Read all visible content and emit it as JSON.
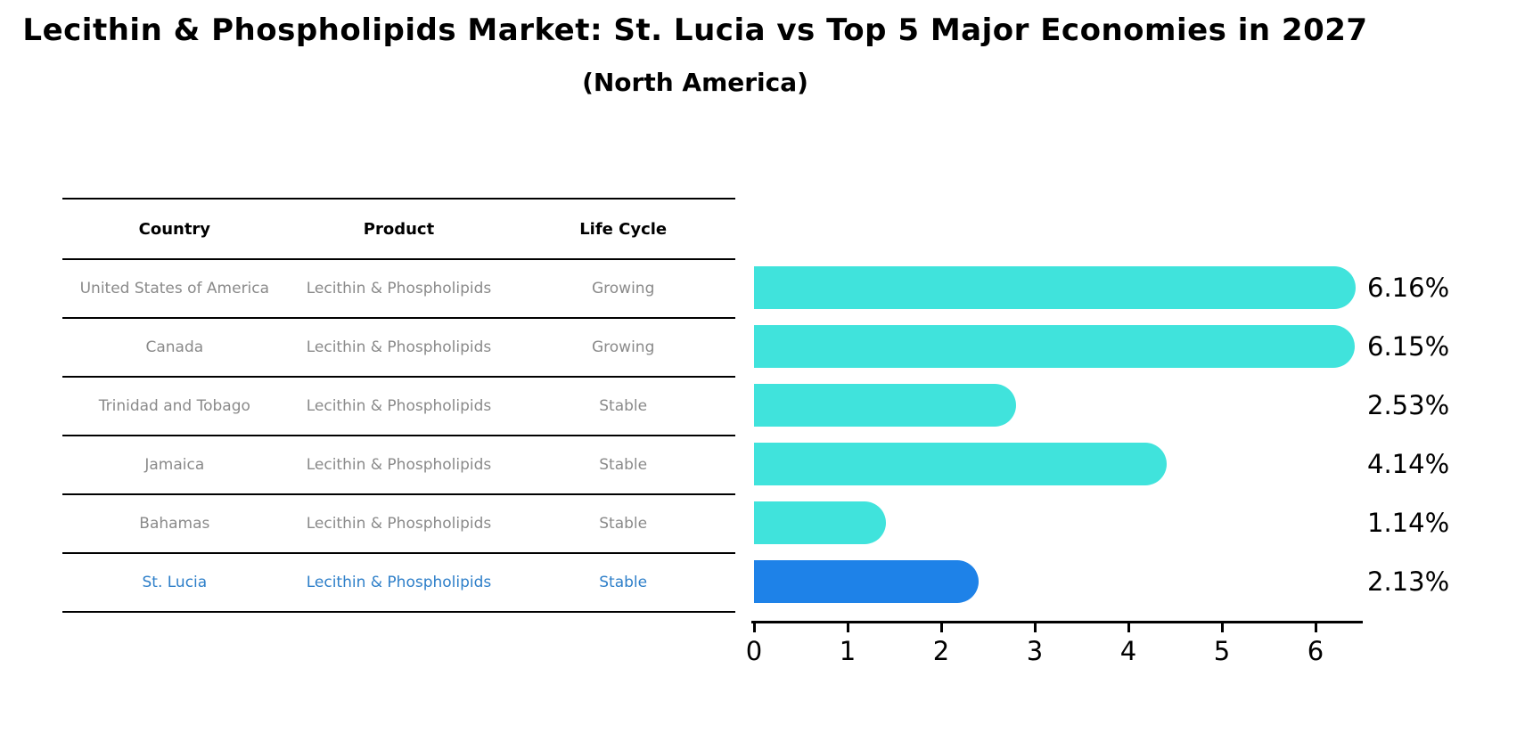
{
  "header": {
    "title": "Lecithin & Phospholipids Market: St. Lucia vs Top 5 Major Economies in 2027",
    "subtitle": "(North America)"
  },
  "table": {
    "columns": [
      "Country",
      "Product",
      "Life Cycle"
    ],
    "rows": [
      {
        "country": "United States of America",
        "product": "Lecithin & Phospholipids",
        "life_cycle": "Growing",
        "highlight": false
      },
      {
        "country": "Canada",
        "product": "Lecithin & Phospholipids",
        "life_cycle": "Growing",
        "highlight": false
      },
      {
        "country": "Trinidad and Tobago",
        "product": "Lecithin & Phospholipids",
        "life_cycle": "Stable",
        "highlight": false
      },
      {
        "country": "Jamaica",
        "product": "Lecithin & Phospholipids",
        "life_cycle": "Stable",
        "highlight": false
      },
      {
        "country": "Bahamas",
        "product": "Lecithin & Phospholipids",
        "life_cycle": "Stable",
        "highlight": false
      },
      {
        "country": "St. Lucia",
        "product": "Lecithin & Phospholipids",
        "life_cycle": "Stable",
        "highlight": true
      }
    ]
  },
  "chart_data": {
    "type": "bar",
    "orientation": "horizontal",
    "title": "Lecithin & Phospholipids Market: St. Lucia vs Top 5 Major Economies in 2027",
    "subtitle": "(North America)",
    "categories": [
      "United States of America",
      "Canada",
      "Trinidad and Tobago",
      "Jamaica",
      "Bahamas",
      "St. Lucia"
    ],
    "values": [
      6.16,
      6.15,
      2.53,
      4.14,
      1.14,
      2.13
    ],
    "value_labels": [
      "6.16%",
      "6.15%",
      "2.53%",
      "4.14%",
      "1.14%",
      "2.13%"
    ],
    "highlight_index": 5,
    "xlabel": "",
    "ylabel": "",
    "xlim": [
      0,
      6.5
    ],
    "xticks": [
      "0",
      "1",
      "2",
      "3",
      "4",
      "5",
      "6"
    ],
    "grid": false,
    "legend": false
  },
  "colors": {
    "bar": "#40e3dc",
    "highlight_bar": "#1e82e8",
    "highlight_text": "#2e7fc9",
    "table_text": "#8a8a8a",
    "header_text": "#000000"
  }
}
